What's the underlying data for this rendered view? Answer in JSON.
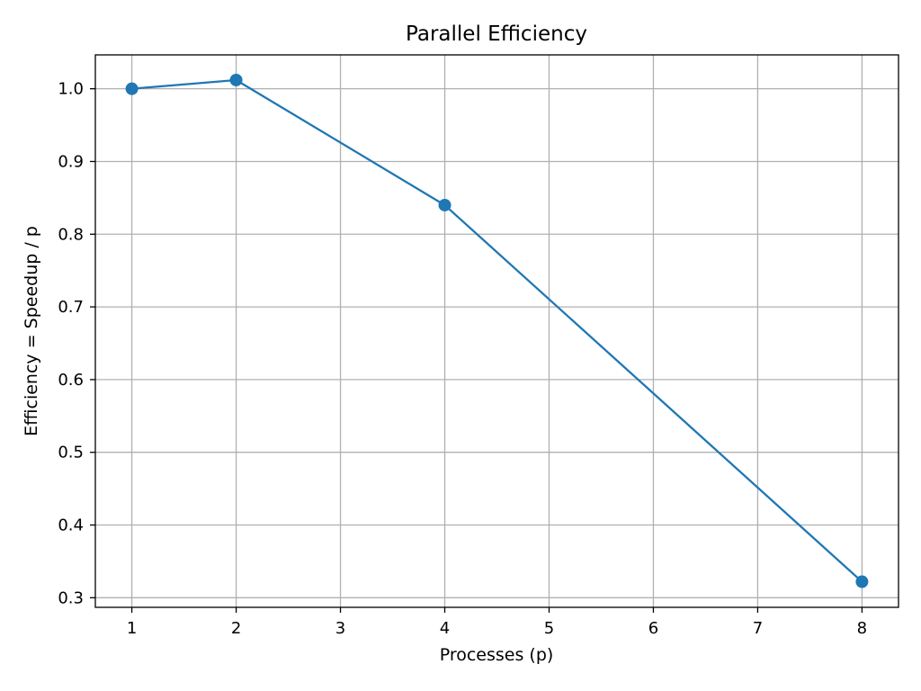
{
  "chart_data": {
    "type": "line",
    "title": "Parallel Efficiency",
    "xlabel": "Processes (p)",
    "ylabel": "Efficiency = Speedup / p",
    "x": [
      1,
      2,
      4,
      8
    ],
    "series": [
      {
        "values": [
          1.0,
          1.012,
          0.84,
          0.322
        ],
        "color": "#1f77b4",
        "marker": "circle"
      }
    ],
    "xlim": [
      0.65,
      8.35
    ],
    "ylim": [
      0.2868,
      1.0466
    ],
    "xticks": [
      1,
      2,
      3,
      4,
      5,
      6,
      7,
      8
    ],
    "xtick_labels": [
      "1",
      "2",
      "3",
      "4",
      "5",
      "6",
      "7",
      "8"
    ],
    "yticks": [
      0.3,
      0.4,
      0.5,
      0.6,
      0.7,
      0.8,
      0.9,
      1.0
    ],
    "ytick_labels": [
      "0.3",
      "0.4",
      "0.5",
      "0.6",
      "0.7",
      "0.8",
      "0.9",
      "1.0"
    ],
    "grid": true,
    "grid_color": "#b0b0b0",
    "axis_color": "#000000"
  }
}
